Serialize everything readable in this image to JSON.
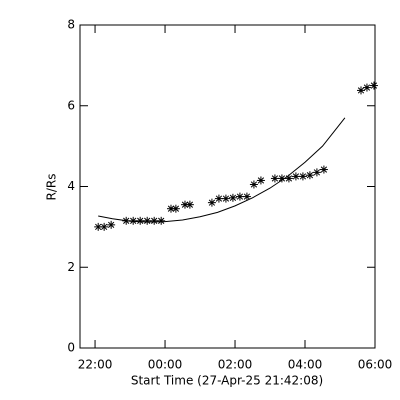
{
  "chart_data": {
    "type": "scatter",
    "xlabel": "Start Time (27-Apr-25 21:42:08)",
    "ylabel": "R/Rs",
    "xlim": [
      21.57,
      30
    ],
    "ylim": [
      0,
      8
    ],
    "xticks": [
      {
        "value": 22,
        "label": "22:00"
      },
      {
        "value": 24,
        "label": "00:00"
      },
      {
        "value": 26,
        "label": "02:00"
      },
      {
        "value": 28,
        "label": "04:00"
      },
      {
        "value": 30,
        "label": "06:00"
      }
    ],
    "yticks": [
      0,
      2,
      4,
      6,
      8
    ],
    "series": [
      {
        "type": "scatter",
        "color": "#000000",
        "x": [
          22.09,
          22.26,
          22.46,
          22.89,
          23.09,
          23.29,
          23.49,
          23.69,
          23.89,
          24.17,
          24.31,
          24.57,
          24.71,
          25.34,
          25.54,
          25.74,
          25.94,
          26.14,
          26.34,
          26.54,
          26.74,
          27.14,
          27.34,
          27.54,
          27.74,
          27.94,
          28.14,
          28.34,
          28.54,
          29.6,
          29.77,
          29.97
        ],
        "values": [
          3.0,
          3.0,
          3.05,
          3.15,
          3.15,
          3.15,
          3.15,
          3.15,
          3.15,
          3.45,
          3.45,
          3.55,
          3.55,
          3.6,
          3.7,
          3.7,
          3.72,
          3.75,
          3.75,
          4.05,
          4.15,
          4.2,
          4.2,
          4.2,
          4.25,
          4.25,
          4.28,
          4.35,
          4.42,
          6.38,
          6.45,
          6.5
        ]
      },
      {
        "type": "line",
        "color": "#000000",
        "x": [
          22.09,
          22.5,
          23,
          23.5,
          24,
          24.5,
          25,
          25.5,
          26,
          26.5,
          27,
          27.5,
          28,
          28.5,
          29.14
        ],
        "values": [
          3.27,
          3.2,
          3.14,
          3.12,
          3.13,
          3.17,
          3.25,
          3.36,
          3.52,
          3.72,
          3.96,
          4.25,
          4.6,
          5.0,
          5.7
        ]
      }
    ]
  }
}
